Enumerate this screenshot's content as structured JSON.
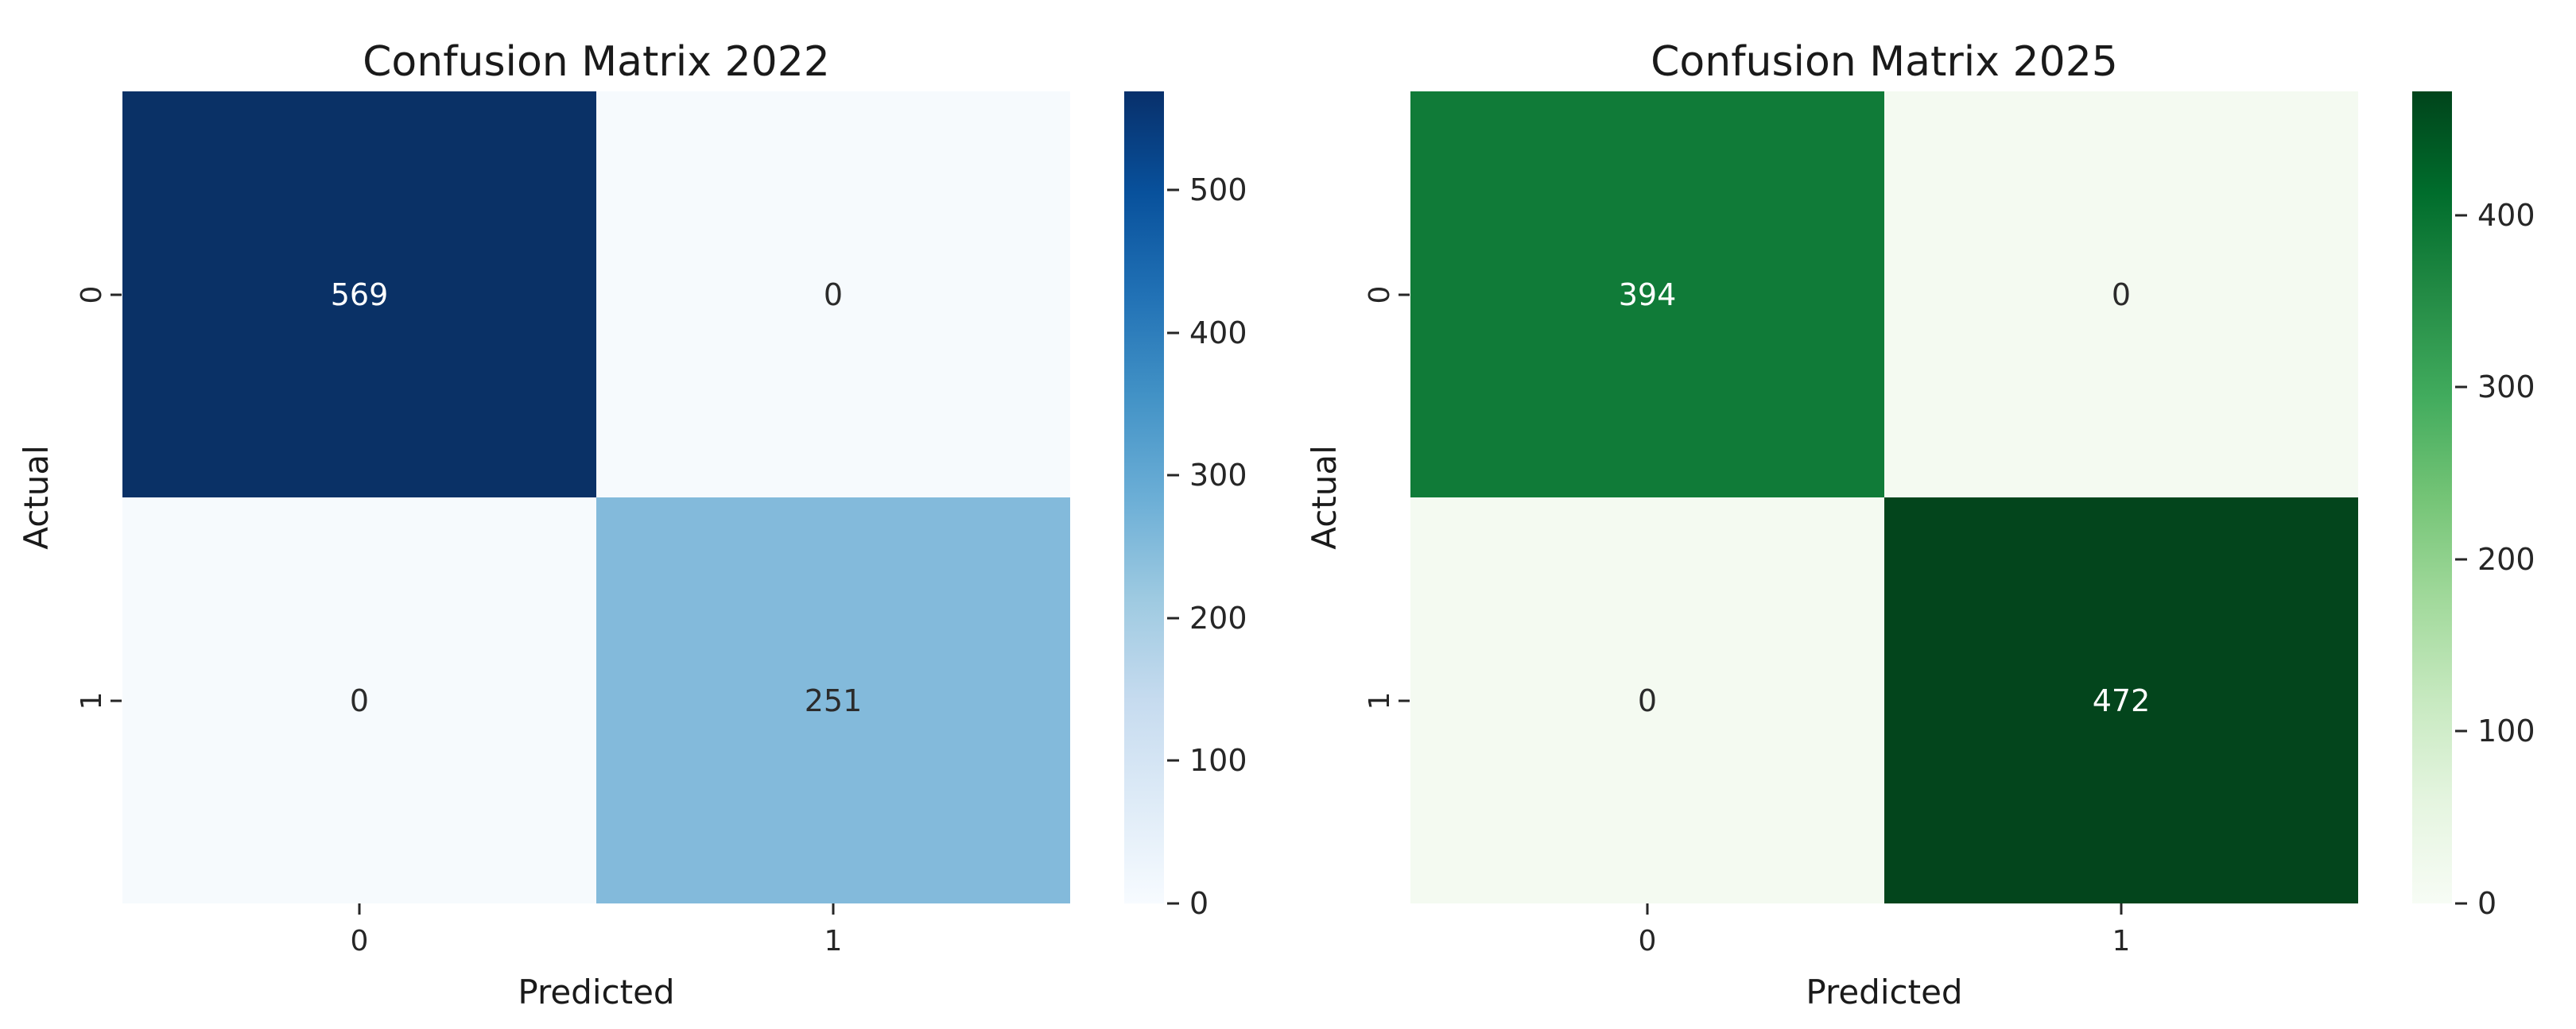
{
  "page": {
    "background": "#ffffff",
    "tick_color": "#262626",
    "text_color": "#1a1a1a"
  },
  "chart_data": [
    {
      "type": "heatmap",
      "title": "Confusion Matrix 2022",
      "xlabel": "Predicted",
      "ylabel": "Actual",
      "x_ticklabels": [
        "0",
        "1"
      ],
      "y_ticklabels": [
        "0",
        "1"
      ],
      "matrix": [
        [
          569,
          0
        ],
        [
          0,
          251
        ]
      ],
      "vmin": 0,
      "vmax": 569,
      "colormap": "Blues",
      "cmap_stops": [
        "#f7fbff",
        "#deebf7",
        "#c6dbef",
        "#9ecae1",
        "#6baed6",
        "#4292c6",
        "#2171b5",
        "#08519c",
        "#08306b"
      ],
      "cell_colors": [
        [
          "#0a3166",
          "#f6fafd"
        ],
        [
          "#f6fafd",
          "#83badb"
        ]
      ],
      "cell_text_colors": [
        [
          "#ffffff",
          "#2b2b2b"
        ],
        [
          "#2b2b2b",
          "#2b2b2b"
        ]
      ],
      "colorbar_ticks": [
        0,
        100,
        200,
        300,
        400,
        500
      ],
      "legend_position": "right-colorbar",
      "grid": false
    },
    {
      "type": "heatmap",
      "title": "Confusion Matrix 2025",
      "xlabel": "Predicted",
      "ylabel": "Actual",
      "x_ticklabels": [
        "0",
        "1"
      ],
      "y_ticklabels": [
        "0",
        "1"
      ],
      "matrix": [
        [
          394,
          0
        ],
        [
          0,
          472
        ]
      ],
      "vmin": 0,
      "vmax": 472,
      "colormap": "Greens",
      "cmap_stops": [
        "#f7fcf5",
        "#e5f5e0",
        "#c7e9c0",
        "#a1d99b",
        "#74c476",
        "#41ab5d",
        "#238b45",
        "#006d2c",
        "#00441b"
      ],
      "cell_colors": [
        [
          "#107b38",
          "#f4faf1"
        ],
        [
          "#f4faf1",
          "#03451c"
        ]
      ],
      "cell_text_colors": [
        [
          "#ffffff",
          "#2b2b2b"
        ],
        [
          "#2b2b2b",
          "#ffffff"
        ]
      ],
      "colorbar_ticks": [
        0,
        100,
        200,
        300,
        400
      ],
      "legend_position": "right-colorbar",
      "grid": false
    }
  ]
}
